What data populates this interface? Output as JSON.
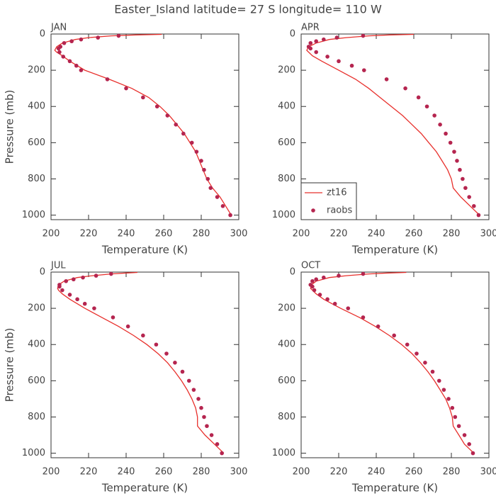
{
  "title": "Easter_Island  latitude= 27 S longitude= 110 W",
  "chart_data": [
    {
      "type": "line",
      "title": "JAN",
      "xlabel": "Temperature (K)",
      "ylabel": "Pressure (mb)",
      "xlim": [
        200,
        300
      ],
      "ylim": [
        1025,
        0
      ],
      "xticks": [
        200,
        220,
        240,
        260,
        280,
        300
      ],
      "yticks": [
        0,
        200,
        400,
        600,
        800,
        1000
      ],
      "series": [
        {
          "color": "#e8302c",
          "mode": "line",
          "x": [
            259,
            245,
            232,
            220,
            213,
            206,
            203,
            202,
            203,
            206,
            210,
            218,
            231,
            243,
            252,
            258,
            263,
            267,
            271,
            274,
            277,
            279,
            281,
            283,
            286,
            290,
            293,
            296
          ],
          "values": [
            2,
            5,
            10,
            20,
            30,
            50,
            70,
            90,
            100,
            120,
            150,
            200,
            250,
            300,
            350,
            400,
            450,
            500,
            550,
            600,
            650,
            700,
            750,
            800,
            850,
            900,
            950,
            1000
          ]
        },
        {
          "color": "#b5254f",
          "mode": "markers",
          "x": [
            295.5,
            291.5,
            288.5,
            285,
            283.5,
            281.5,
            280,
            277.5,
            275,
            270.5,
            266.5,
            262,
            256.5,
            249,
            240,
            230,
            216,
            213.5,
            210,
            206.5,
            204.5,
            204,
            205,
            207,
            211,
            216,
            225,
            236
          ],
          "values": [
            1000,
            950,
            900,
            850,
            800,
            750,
            700,
            650,
            600,
            550,
            500,
            450,
            400,
            350,
            300,
            250,
            200,
            175,
            150,
            125,
            100,
            80,
            70,
            50,
            40,
            30,
            20,
            10
          ]
        }
      ]
    },
    {
      "type": "line",
      "title": "APR",
      "xlabel": "Temperature (K)",
      "xlim": [
        200,
        300
      ],
      "ylim": [
        1025,
        0
      ],
      "xticks": [
        200,
        220,
        240,
        260,
        280,
        300
      ],
      "yticks": [
        0,
        200,
        400,
        600,
        800,
        1000
      ],
      "legend": "lower left",
      "series": [
        {
          "name": "zt16",
          "color": "#e8302c",
          "mode": "line",
          "x": [
            260,
            247,
            236,
            224,
            215,
            208,
            204,
            203,
            204,
            206,
            211,
            220,
            229,
            236,
            242,
            248,
            254,
            259,
            264,
            268,
            272,
            275,
            278,
            280,
            281,
            285,
            290,
            295
          ],
          "values": [
            2,
            5,
            10,
            20,
            30,
            50,
            70,
            90,
            100,
            120,
            150,
            200,
            250,
            300,
            350,
            400,
            450,
            500,
            550,
            600,
            650,
            700,
            750,
            800,
            850,
            900,
            950,
            1000
          ]
        },
        {
          "name": "raobs",
          "color": "#b5254f",
          "mode": "markers",
          "x": [
            294.5,
            292,
            289.5,
            287.5,
            286,
            284.5,
            283,
            281.5,
            279.5,
            277,
            274,
            271,
            267,
            262.5,
            255.5,
            245.5,
            233.5,
            227,
            220,
            214,
            208,
            205,
            204,
            205,
            208,
            212,
            219,
            233
          ],
          "values": [
            1000,
            950,
            900,
            850,
            800,
            750,
            700,
            650,
            600,
            550,
            500,
            450,
            400,
            350,
            300,
            250,
            200,
            175,
            150,
            125,
            100,
            80,
            70,
            50,
            40,
            30,
            20,
            10
          ]
        }
      ]
    },
    {
      "type": "line",
      "title": "JUL",
      "xlabel": "Temperature (K)",
      "ylabel": "Pressure (mb)",
      "xlim": [
        200,
        300
      ],
      "ylim": [
        1025,
        0
      ],
      "xticks": [
        200,
        220,
        240,
        260,
        280,
        300
      ],
      "yticks": [
        0,
        200,
        400,
        600,
        800,
        1000
      ],
      "series": [
        {
          "color": "#e8302c",
          "mode": "line",
          "x": [
            246,
            240,
            232,
            222,
            214,
            207,
            204,
            203.5,
            204,
            206,
            210,
            218,
            227,
            236,
            244,
            251,
            257,
            262,
            266,
            269.5,
            272.5,
            275,
            277,
            278,
            278,
            282,
            287,
            292
          ],
          "values": [
            2,
            5,
            10,
            20,
            30,
            50,
            70,
            90,
            100,
            120,
            150,
            200,
            250,
            300,
            350,
            400,
            450,
            500,
            550,
            600,
            650,
            700,
            750,
            800,
            850,
            900,
            950,
            1000
          ]
        },
        {
          "color": "#b5254f",
          "mode": "markers",
          "x": [
            291,
            288.5,
            285.5,
            283,
            281.5,
            280,
            278.5,
            276,
            273.5,
            270,
            266,
            261.5,
            256,
            249,
            241,
            233,
            223,
            218,
            214,
            210,
            206,
            204.5,
            204.5,
            208,
            212,
            217,
            224,
            232
          ],
          "values": [
            1000,
            950,
            900,
            850,
            800,
            750,
            700,
            650,
            600,
            550,
            500,
            450,
            400,
            350,
            300,
            250,
            200,
            175,
            150,
            125,
            100,
            80,
            70,
            50,
            40,
            30,
            20,
            10
          ]
        }
      ]
    },
    {
      "type": "line",
      "title": "OCT",
      "xlabel": "Temperature (K)",
      "xlim": [
        200,
        300
      ],
      "ylim": [
        1025,
        0
      ],
      "xticks": [
        200,
        220,
        240,
        260,
        280,
        300
      ],
      "yticks": [
        0,
        200,
        400,
        600,
        800,
        1000
      ],
      "series": [
        {
          "color": "#e8302c",
          "mode": "line",
          "x": [
            256,
            246,
            236,
            224,
            215,
            208,
            205.5,
            205,
            206,
            208,
            212,
            221,
            231,
            239.5,
            247,
            253.5,
            259,
            263.5,
            267.5,
            271,
            274,
            277,
            279,
            280.5,
            281,
            284,
            287,
            292
          ],
          "values": [
            2,
            5,
            10,
            20,
            30,
            50,
            70,
            90,
            100,
            120,
            150,
            200,
            250,
            300,
            350,
            400,
            450,
            500,
            550,
            600,
            650,
            700,
            750,
            800,
            850,
            900,
            950,
            1000
          ]
        },
        {
          "color": "#b5254f",
          "mode": "markers",
          "x": [
            291.5,
            289.5,
            287,
            284,
            282,
            280.5,
            278.5,
            276,
            273.5,
            270,
            266,
            261.5,
            256.5,
            249.5,
            241,
            233,
            225,
            218,
            214,
            210,
            207,
            206,
            205,
            206,
            208,
            212,
            220,
            233
          ],
          "values": [
            1000,
            950,
            900,
            850,
            800,
            750,
            700,
            650,
            600,
            550,
            500,
            450,
            400,
            350,
            300,
            250,
            200,
            175,
            150,
            125,
            100,
            80,
            70,
            50,
            40,
            30,
            20,
            10
          ]
        }
      ]
    }
  ]
}
